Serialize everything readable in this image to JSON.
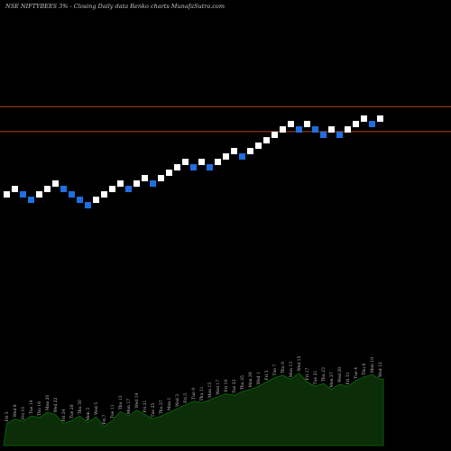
{
  "chart_data": {
    "type": "renko",
    "title": "NSE NIFTYBEES 3% -  Closing Daily data  Renko  charts MunafaSutra.com",
    "colors": {
      "background": "#000000",
      "up_brick": "#ffffff",
      "down_brick": "#1e6fe0",
      "level_line": "#b34712",
      "volume_fill": "#0b2d07",
      "volume_line": "#0d6a0d"
    },
    "horizontal_levels": [
      {
        "price_step": 17.2
      },
      {
        "price_step": 12.6
      }
    ],
    "bricks": [
      {
        "direction": "up",
        "step": 1
      },
      {
        "direction": "up",
        "step": 2
      },
      {
        "direction": "down",
        "step": 1
      },
      {
        "direction": "down",
        "step": 0
      },
      {
        "direction": "up",
        "step": 1
      },
      {
        "direction": "up",
        "step": 2
      },
      {
        "direction": "up",
        "step": 3
      },
      {
        "direction": "down",
        "step": 2
      },
      {
        "direction": "down",
        "step": 1
      },
      {
        "direction": "down",
        "step": 0
      },
      {
        "direction": "down",
        "step": -1
      },
      {
        "direction": "up",
        "step": 0
      },
      {
        "direction": "up",
        "step": 1
      },
      {
        "direction": "up",
        "step": 2
      },
      {
        "direction": "up",
        "step": 3
      },
      {
        "direction": "down",
        "step": 2
      },
      {
        "direction": "up",
        "step": 3
      },
      {
        "direction": "up",
        "step": 4
      },
      {
        "direction": "down",
        "step": 3
      },
      {
        "direction": "up",
        "step": 4
      },
      {
        "direction": "up",
        "step": 5
      },
      {
        "direction": "up",
        "step": 6
      },
      {
        "direction": "up",
        "step": 7
      },
      {
        "direction": "down",
        "step": 6
      },
      {
        "direction": "up",
        "step": 7
      },
      {
        "direction": "down",
        "step": 6
      },
      {
        "direction": "up",
        "step": 7
      },
      {
        "direction": "up",
        "step": 8
      },
      {
        "direction": "up",
        "step": 9
      },
      {
        "direction": "down",
        "step": 8
      },
      {
        "direction": "up",
        "step": 9
      },
      {
        "direction": "up",
        "step": 10
      },
      {
        "direction": "up",
        "step": 11
      },
      {
        "direction": "up",
        "step": 12
      },
      {
        "direction": "up",
        "step": 13
      },
      {
        "direction": "up",
        "step": 14
      },
      {
        "direction": "down",
        "step": 13
      },
      {
        "direction": "up",
        "step": 14
      },
      {
        "direction": "down",
        "step": 13
      },
      {
        "direction": "down",
        "step": 12
      },
      {
        "direction": "up",
        "step": 13
      },
      {
        "direction": "down",
        "step": 12
      },
      {
        "direction": "up",
        "step": 13
      },
      {
        "direction": "up",
        "step": 14
      },
      {
        "direction": "up",
        "step": 15
      },
      {
        "direction": "down",
        "step": 14
      },
      {
        "direction": "up",
        "step": 15
      }
    ],
    "volume": [
      0.3,
      0.36,
      0.33,
      0.4,
      0.38,
      0.45,
      0.42,
      0.3,
      0.34,
      0.4,
      0.31,
      0.39,
      0.26,
      0.34,
      0.46,
      0.4,
      0.48,
      0.42,
      0.36,
      0.4,
      0.45,
      0.5,
      0.55,
      0.6,
      0.58,
      0.62,
      0.66,
      0.7,
      0.68,
      0.73,
      0.76,
      0.8,
      0.86,
      0.92,
      0.95,
      0.9,
      0.98,
      0.86,
      0.8,
      0.84,
      0.76,
      0.83,
      0.8,
      0.88,
      0.93,
      0.96,
      0.9
    ],
    "volume_labels": [
      "Fri 3",
      "Wed 8",
      "Fri 10",
      "Tue 14",
      "Thu 16",
      "Mon 20",
      "Wed 22",
      "Fri 24",
      "Tue 28",
      "Thu 30",
      "Mon 3",
      "Wed 5",
      "Fri 7",
      "Tue 11",
      "Thu 13",
      "Mon 17",
      "Wed 19",
      "Fri 21",
      "Tue 25",
      "Thu 27",
      "Mon 1",
      "Wed 3",
      "Fri 5",
      "Tue 9",
      "Thu 11",
      "Mon 15",
      "Wed 17",
      "Fri 19",
      "Tue 23",
      "Thu 25",
      "Mon 29",
      "Wed 1",
      "Fri 3",
      "Tue 7",
      "Thu 9",
      "Mon 13",
      "Wed 15",
      "Fri 17",
      "Tue 21",
      "Thu 23",
      "Mon 27",
      "Wed 29",
      "Fri 31",
      "Tue 4",
      "Thu 6",
      "Mon 10",
      "Wed 12"
    ],
    "xlabel": "",
    "ylabel": ""
  }
}
